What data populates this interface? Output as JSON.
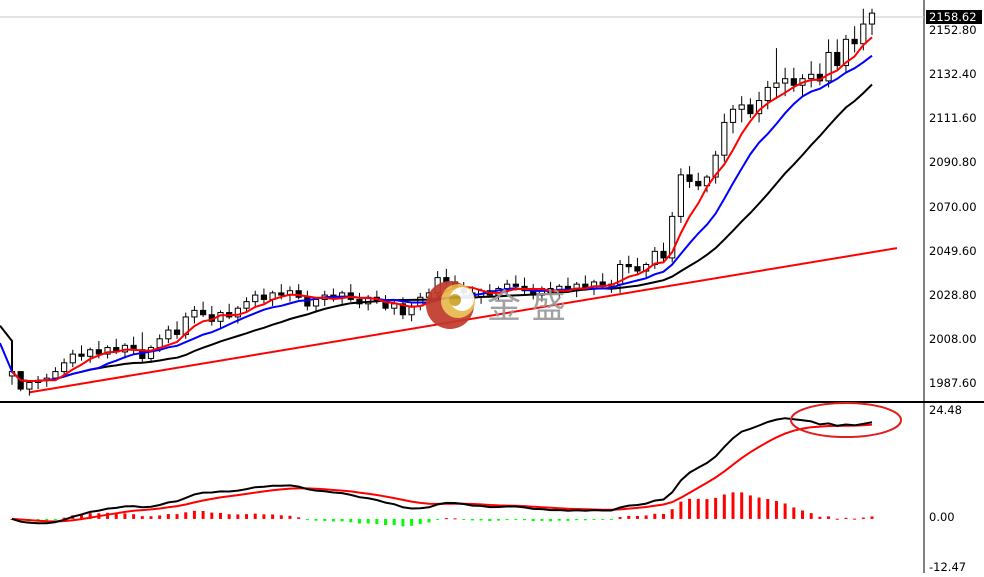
{
  "chart_data": [
    {
      "type": "candlestick",
      "panel": "price",
      "current_price_label": "2158.62",
      "y_ticks": [
        "2152.80",
        "2132.40",
        "2111.60",
        "2090.80",
        "2070.00",
        "2049.60",
        "2028.80",
        "2008.00",
        "1987.60"
      ],
      "ylim": [
        1981,
        2164
      ],
      "n_candles": 100,
      "candles": [
        [
          1992,
          1995,
          1988,
          1994
        ],
        [
          1994,
          1994,
          1985,
          1986
        ],
        [
          1986,
          1990,
          1983,
          1989
        ],
        [
          1989,
          1992,
          1986,
          1990
        ],
        [
          1990,
          1993,
          1987,
          1991
        ],
        [
          1991,
          1996,
          1990,
          1994
        ],
        [
          1994,
          2000,
          1992,
          1998
        ],
        [
          1998,
          2004,
          1996,
          2002
        ],
        [
          2002,
          2006,
          1999,
          2001
        ],
        [
          2001,
          2005,
          1998,
          2004
        ],
        [
          2004,
          2008,
          2000,
          2002
        ],
        [
          2002,
          2006,
          2000,
          2005
        ],
        [
          2005,
          2009,
          2002,
          2003
        ],
        [
          2003,
          2007,
          2000,
          2006
        ],
        [
          2006,
          2010,
          2002,
          2004
        ],
        [
          2004,
          2012,
          1998,
          2000
        ],
        [
          2000,
          2006,
          1998,
          2005
        ],
        [
          2005,
          2011,
          2003,
          2009
        ],
        [
          2009,
          2015,
          2007,
          2013
        ],
        [
          2013,
          2017,
          2009,
          2011
        ],
        [
          2011,
          2021,
          2009,
          2019
        ],
        [
          2019,
          2024,
          2016,
          2022
        ],
        [
          2022,
          2026,
          2019,
          2020
        ],
        [
          2020,
          2024,
          2015,
          2017
        ],
        [
          2017,
          2022,
          2014,
          2021
        ],
        [
          2021,
          2025,
          2018,
          2019
        ],
        [
          2019,
          2024,
          2016,
          2023
        ],
        [
          2023,
          2028,
          2021,
          2026
        ],
        [
          2026,
          2031,
          2023,
          2029
        ],
        [
          2029,
          2032,
          2025,
          2027
        ],
        [
          2027,
          2031,
          2024,
          2030
        ],
        [
          2030,
          2034,
          2027,
          2029
        ],
        [
          2029,
          2033,
          2026,
          2031
        ],
        [
          2031,
          2034,
          2027,
          2028
        ],
        [
          2028,
          2031,
          2022,
          2024
        ],
        [
          2024,
          2028,
          2021,
          2027
        ],
        [
          2027,
          2031,
          2024,
          2029
        ],
        [
          2029,
          2032,
          2026,
          2028
        ],
        [
          2028,
          2031,
          2025,
          2030
        ],
        [
          2030,
          2034,
          2026,
          2027
        ],
        [
          2027,
          2030,
          2023,
          2025
        ],
        [
          2025,
          2029,
          2022,
          2028
        ],
        [
          2028,
          2031,
          2025,
          2026
        ],
        [
          2026,
          2029,
          2022,
          2023
        ],
        [
          2023,
          2027,
          2020,
          2025
        ],
        [
          2025,
          2028,
          2018,
          2020
        ],
        [
          2020,
          2026,
          2017,
          2024
        ],
        [
          2024,
          2030,
          2022,
          2028
        ],
        [
          2028,
          2032,
          2025,
          2030
        ],
        [
          2030,
          2040,
          2028,
          2037
        ],
        [
          2037,
          2041,
          2033,
          2035
        ],
        [
          2035,
          2038,
          2030,
          2032
        ],
        [
          2032,
          2035,
          2028,
          2030
        ],
        [
          2030,
          2033,
          2026,
          2028
        ],
        [
          2028,
          2032,
          2025,
          2031
        ],
        [
          2031,
          2034,
          2028,
          2029
        ],
        [
          2029,
          2033,
          2026,
          2032
        ],
        [
          2032,
          2036,
          2029,
          2034
        ],
        [
          2034,
          2038,
          2031,
          2033
        ],
        [
          2033,
          2037,
          2029,
          2031
        ],
        [
          2031,
          2034,
          2027,
          2029
        ],
        [
          2029,
          2033,
          2026,
          2032
        ],
        [
          2032,
          2035,
          2029,
          2030
        ],
        [
          2030,
          2034,
          2027,
          2033
        ],
        [
          2033,
          2037,
          2030,
          2031
        ],
        [
          2031,
          2035,
          2028,
          2034
        ],
        [
          2034,
          2038,
          2031,
          2032
        ],
        [
          2032,
          2036,
          2029,
          2035
        ],
        [
          2035,
          2039,
          2032,
          2033
        ],
        [
          2033,
          2036,
          2030,
          2034
        ],
        [
          2034,
          2045,
          2030,
          2043
        ],
        [
          2043,
          2047,
          2039,
          2042
        ],
        [
          2042,
          2046,
          2038,
          2040
        ],
        [
          2040,
          2044,
          2037,
          2043
        ],
        [
          2043,
          2051,
          2041,
          2049
        ],
        [
          2049,
          2053,
          2044,
          2046
        ],
        [
          2046,
          2067,
          2044,
          2065
        ],
        [
          2065,
          2087,
          2062,
          2084
        ],
        [
          2084,
          2088,
          2078,
          2081
        ],
        [
          2081,
          2085,
          2077,
          2079
        ],
        [
          2079,
          2084,
          2076,
          2083
        ],
        [
          2083,
          2095,
          2080,
          2093
        ],
        [
          2093,
          2112,
          2090,
          2108
        ],
        [
          2108,
          2116,
          2103,
          2114
        ],
        [
          2114,
          2120,
          2108,
          2116
        ],
        [
          2116,
          2119,
          2110,
          2112
        ],
        [
          2112,
          2122,
          2108,
          2118
        ],
        [
          2118,
          2127,
          2114,
          2124
        ],
        [
          2124,
          2142,
          2119,
          2126
        ],
        [
          2126,
          2133,
          2120,
          2128
        ],
        [
          2128,
          2133,
          2122,
          2125
        ],
        [
          2125,
          2130,
          2120,
          2128
        ],
        [
          2128,
          2136,
          2124,
          2130
        ],
        [
          2130,
          2135,
          2125,
          2127
        ],
        [
          2127,
          2146,
          2124,
          2140
        ],
        [
          2140,
          2146,
          2132,
          2134
        ],
        [
          2134,
          2148,
          2131,
          2146
        ],
        [
          2146,
          2152,
          2140,
          2144
        ],
        [
          2144,
          2160,
          2141,
          2153
        ],
        [
          2153,
          2160,
          2148,
          2158
        ]
      ]
    },
    {
      "type": "line+bar",
      "panel": "macd",
      "y_ticks": [
        "24.48",
        "0.00",
        "-12.47"
      ],
      "ylim": [
        -12.47,
        26.5
      ],
      "hist_colors": {
        "positive": "#ff0000",
        "negative": "#00ff00"
      },
      "line_colors": {
        "macd": "#000000",
        "signal": "#ff0000"
      }
    }
  ],
  "colors": {
    "bull": "#ffffff",
    "bear": "#000000",
    "ma5": "#ff0000",
    "ma10": "#0000ff",
    "ma20": "#000000",
    "trend": "#ff0000"
  },
  "watermark_text": "金 盛"
}
